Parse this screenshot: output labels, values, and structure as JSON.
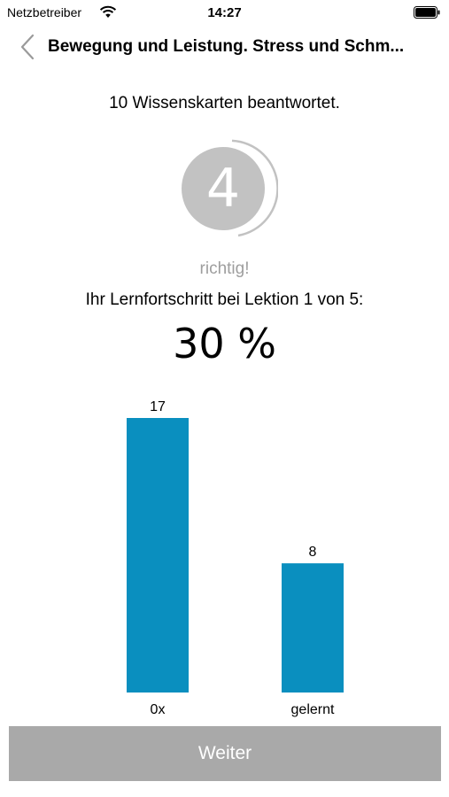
{
  "status_bar": {
    "carrier": "Netzbetreiber",
    "time": "14:27",
    "wifi_icon": "wifi-icon",
    "battery_icon": "battery-icon"
  },
  "nav": {
    "back_icon": "chevron-left-icon",
    "title": "Bewegung und Leistung. Stress und Schm..."
  },
  "summary": {
    "answered_text": "10 Wissenskarten beantwortet.",
    "correct_count": "4",
    "correct_label": "richtig!",
    "progress_label": "Ihr Lernfortschritt bei Lektion 1 von 5:",
    "progress_value": "30 %"
  },
  "colors": {
    "bar": "#0a8fbf",
    "circle": "#c2c2c2",
    "button": "#a9a9a9",
    "muted_text": "#9e9e9e"
  },
  "chart_data": {
    "type": "bar",
    "categories": [
      "0x",
      "gelernt"
    ],
    "values": [
      17,
      8
    ],
    "ylim": [
      0,
      17
    ]
  },
  "footer": {
    "continue_label": "Weiter"
  }
}
